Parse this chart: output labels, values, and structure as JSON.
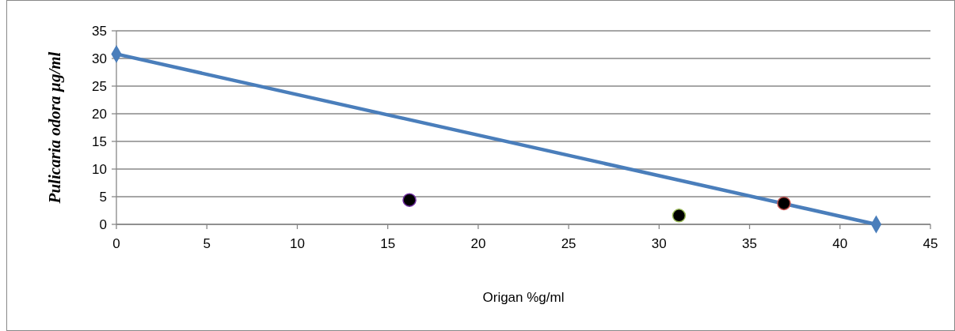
{
  "chart_data": {
    "type": "scatter",
    "xlabel": "Origan %g/ml",
    "ylabel": "Pulicaria odora µg/ml",
    "xlim": [
      0,
      45
    ],
    "xticks": [
      0,
      5,
      10,
      15,
      20,
      25,
      30,
      35,
      40,
      45
    ],
    "ylim": [
      0,
      35
    ],
    "yticks": [
      0,
      5,
      10,
      15,
      20,
      25,
      30,
      35
    ],
    "grid": "y",
    "series": [
      {
        "type": "line",
        "color": "#4a7ebb",
        "marker": "diamond",
        "x": [
          0,
          42
        ],
        "values": [
          30.8,
          0
        ]
      },
      {
        "color": "#000000",
        "colors": [
          "#7030a0",
          "#9bbb59",
          "#c0504d"
        ],
        "marker": "circle",
        "x": [
          16.2,
          31.1,
          36.9
        ],
        "values": [
          4.4,
          1.6,
          3.8
        ]
      }
    ]
  }
}
